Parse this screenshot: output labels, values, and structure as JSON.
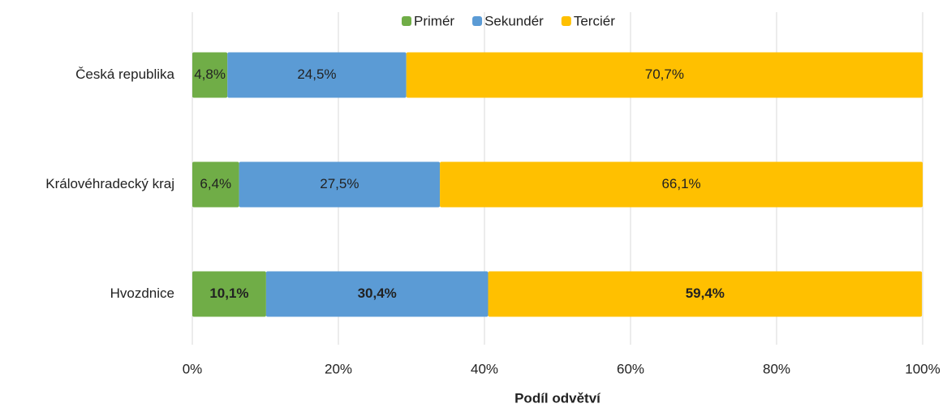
{
  "chart_data": {
    "type": "stacked_barh",
    "categories": [
      "Česká republika",
      "Královéhradecký kraj",
      "Hvozdnice"
    ],
    "series": [
      {
        "name": "Primér",
        "color": "#70ad47",
        "values": [
          4.8,
          6.4,
          10.1
        ],
        "value_labels": [
          "4,8%",
          "6,4%",
          "10,1%"
        ]
      },
      {
        "name": "Sekundér",
        "color": "#5b9bd5",
        "values": [
          24.5,
          27.5,
          30.4
        ],
        "value_labels": [
          "24,5%",
          "27,5%",
          "30,4%"
        ]
      },
      {
        "name": "Terciér",
        "color": "#ffc000",
        "values": [
          70.7,
          66.1,
          59.4
        ],
        "value_labels": [
          "70,7%",
          "66,1%",
          "59,4%"
        ]
      }
    ],
    "xlabel": "Podíl odvětví",
    "xlim": [
      0,
      100
    ],
    "xticks": [
      {
        "value": 0,
        "label": "0%"
      },
      {
        "value": 20,
        "label": "20%"
      },
      {
        "value": 40,
        "label": "40%"
      },
      {
        "value": 60,
        "label": "60%"
      },
      {
        "value": 80,
        "label": "80%"
      },
      {
        "value": 100,
        "label": "100%"
      }
    ],
    "grid": true,
    "legend": "top",
    "bold_label_rows": [
      2
    ]
  }
}
